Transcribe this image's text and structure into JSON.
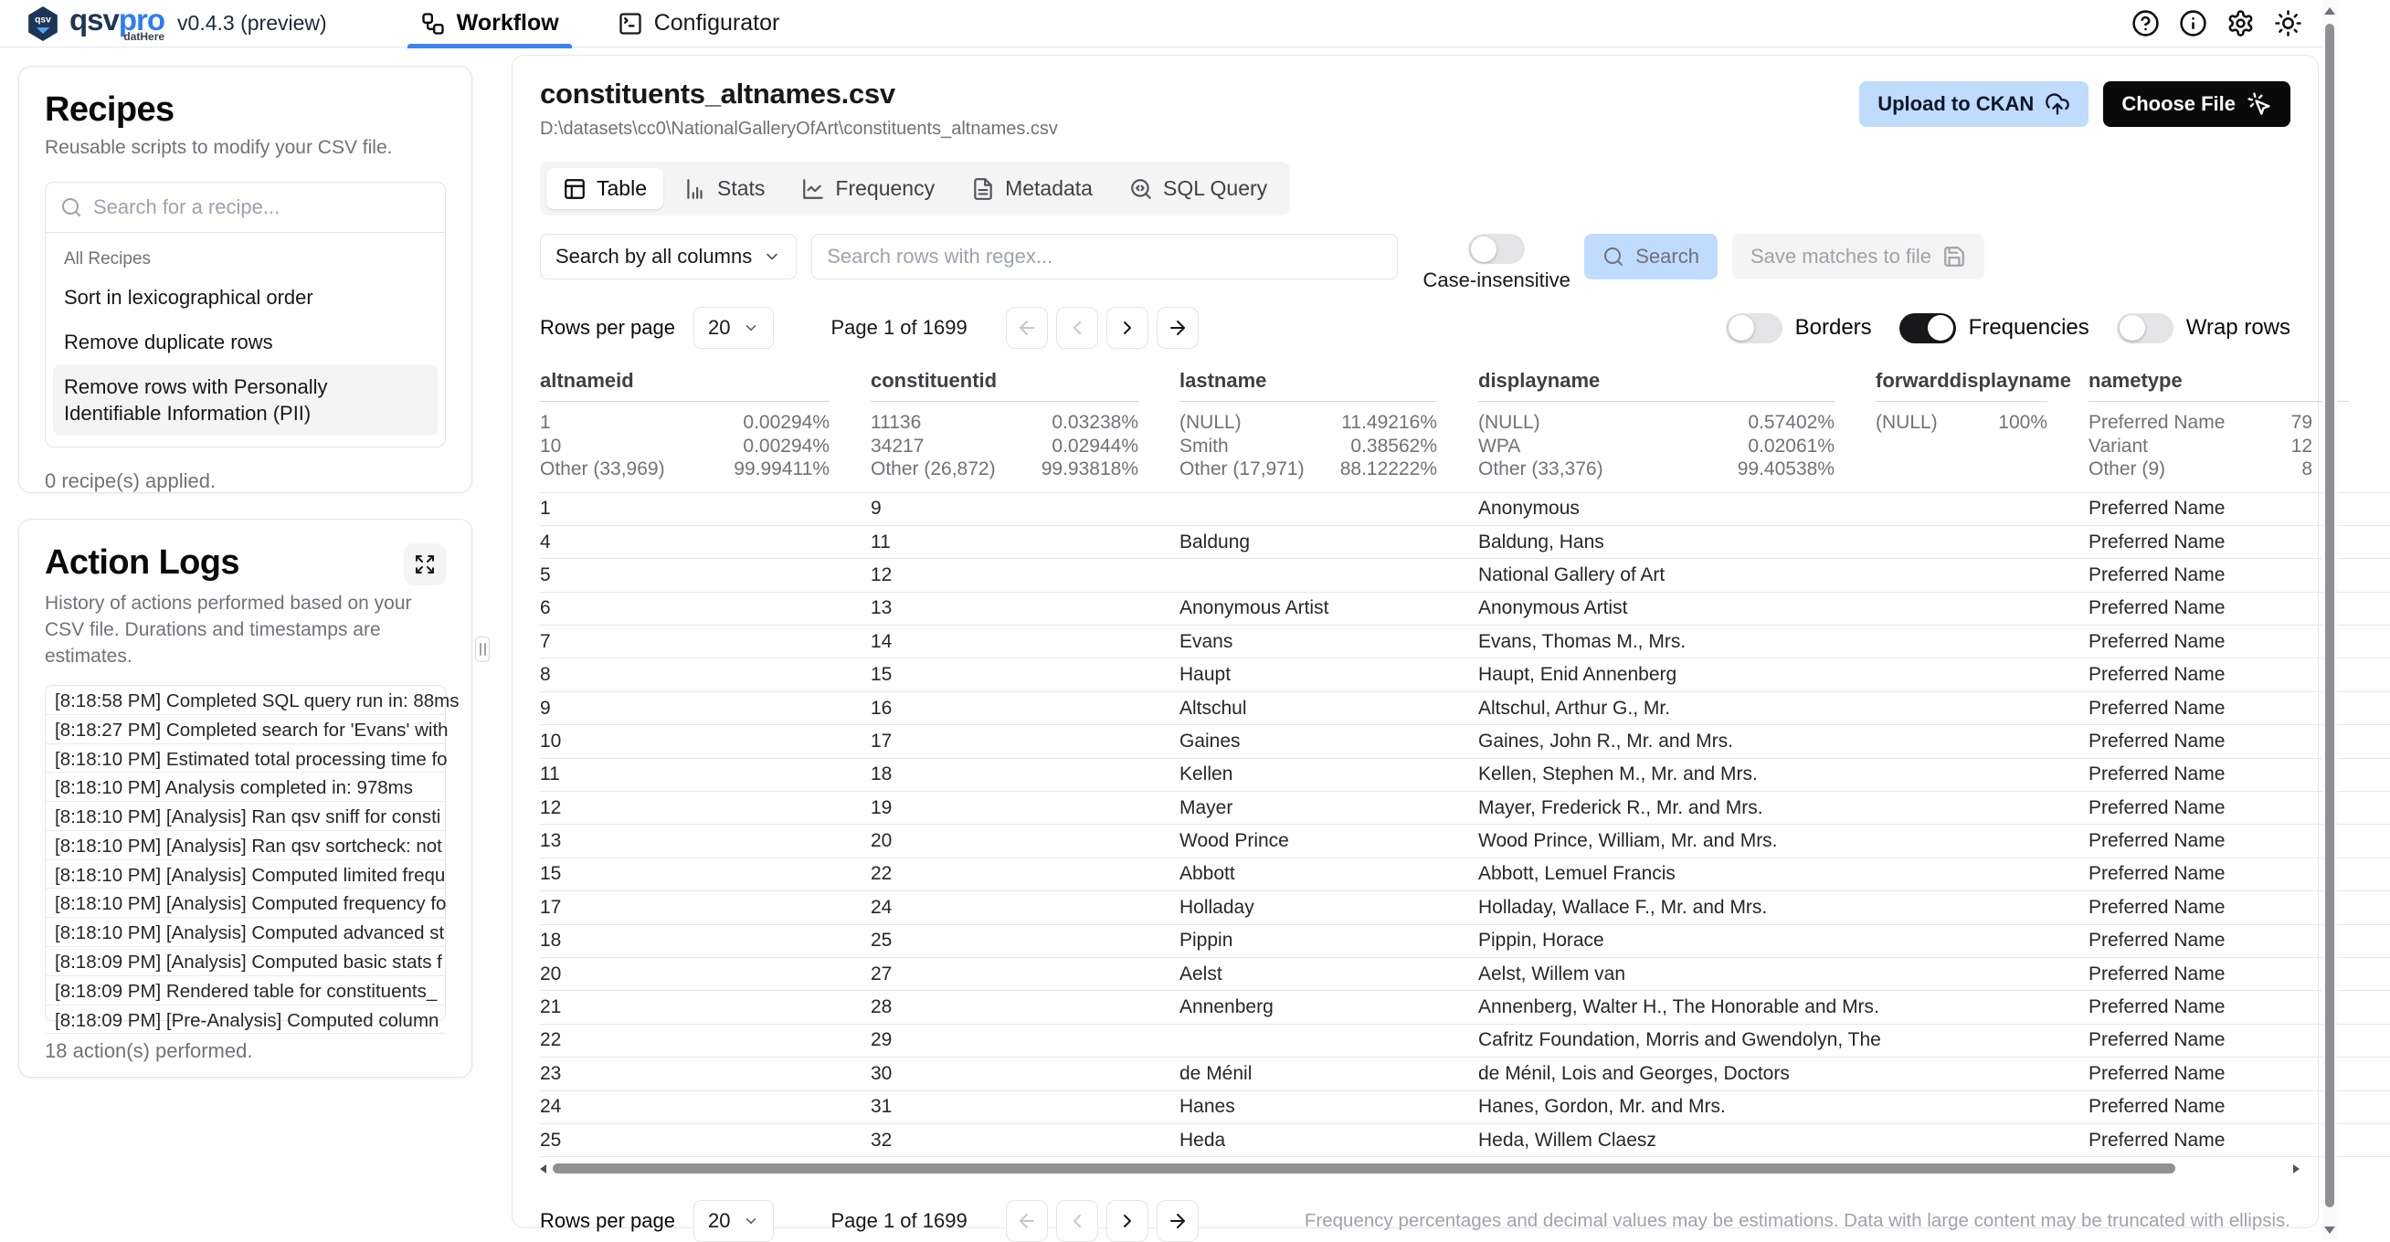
{
  "colors": {
    "accent": "#3b82f6",
    "upload_button_bg": "#bfdbfe",
    "choose_button_bg": "#0a0a0a",
    "toggle_on": "#18181b",
    "brand_navy": "#1d3557",
    "brand_blue": "#2f7bf5"
  },
  "topbar": {
    "brand": {
      "qsv": "qsv",
      "pro": "pro",
      "sub": "datHere"
    },
    "version": "v0.4.3 (preview)",
    "tabs": [
      {
        "label": "Workflow",
        "active": true
      },
      {
        "label": "Configurator",
        "active": false
      }
    ]
  },
  "recipes": {
    "title": "Recipes",
    "subtitle": "Reusable scripts to modify your CSV file.",
    "search_placeholder": "Search for a recipe...",
    "group_label": "All Recipes",
    "items": [
      {
        "label": "Sort in lexicographical order",
        "selected": false
      },
      {
        "label": "Remove duplicate rows",
        "selected": false
      },
      {
        "label": "Remove rows with Personally Identifiable Information (PII)",
        "selected": true
      }
    ],
    "applied_note": "0 recipe(s) applied."
  },
  "action_logs": {
    "title": "Action Logs",
    "subtitle": "History of actions performed based on your CSV file. Durations and timestamps are estimates.",
    "entries": [
      "[8:18:58 PM] Completed SQL query run in: 88ms",
      "[8:18:27 PM] Completed search for 'Evans' with",
      "[8:18:10 PM] Estimated total processing time fo",
      "[8:18:10 PM] Analysis completed in: 978ms",
      "[8:18:10 PM] [Analysis] Ran qsv sniff for consti",
      "[8:18:10 PM] [Analysis] Ran qsv sortcheck: not",
      "[8:18:10 PM] [Analysis] Computed limited frequ",
      "[8:18:10 PM] [Analysis] Computed frequency fo",
      "[8:18:10 PM] [Analysis] Computed advanced st",
      "[8:18:09 PM] [Analysis] Computed basic stats f",
      "[8:18:09 PM] Rendered table for constituents_",
      "[8:18:09 PM] [Pre-Analysis] Computed column"
    ],
    "footer": "18 action(s) performed."
  },
  "main": {
    "file": {
      "name": "constituents_altnames.csv",
      "path": "D:\\datasets\\cc0\\NationalGalleryOfArt\\constituents_altnames.csv"
    },
    "buttons": {
      "upload": "Upload to CKAN",
      "choose": "Choose File"
    },
    "tabs": [
      {
        "label": "Table",
        "active": true
      },
      {
        "label": "Stats",
        "active": false
      },
      {
        "label": "Frequency",
        "active": false
      },
      {
        "label": "Metadata",
        "active": false
      },
      {
        "label": "SQL Query",
        "active": false
      }
    ],
    "search": {
      "column_select": "Search by all columns",
      "input_placeholder": "Search rows with regex...",
      "case_label": "Case-insensitive",
      "case_on": false,
      "search_button": "Search",
      "save_button": "Save matches to file"
    },
    "pagination": {
      "rows_label": "Rows per page",
      "rows_value": "20",
      "page_status": "Page 1 of 1699"
    },
    "view_toggles": [
      {
        "label": "Borders",
        "on": false
      },
      {
        "label": "Frequencies",
        "on": true
      },
      {
        "label": "Wrap rows",
        "on": false
      }
    ],
    "footnote": "Frequency percentages and decimal values may be estimations. Data with large content may be truncated with ellipsis."
  },
  "table": {
    "columns": [
      "altnameid",
      "constituentid",
      "lastname",
      "displayname",
      "forwarddisplayname",
      "nametype"
    ],
    "frequencies": [
      [
        [
          "1",
          "0.00294%"
        ],
        [
          "10",
          "0.00294%"
        ],
        [
          "Other (33,969)",
          "99.99411%"
        ]
      ],
      [
        [
          "11136",
          "0.03238%"
        ],
        [
          "34217",
          "0.02944%"
        ],
        [
          "Other (26,872)",
          "99.93818%"
        ]
      ],
      [
        [
          "(NULL)",
          "11.49216%"
        ],
        [
          "Smith",
          "0.38562%"
        ],
        [
          "Other (17,971)",
          "88.12222%"
        ]
      ],
      [
        [
          "(NULL)",
          "0.57402%"
        ],
        [
          "WPA",
          "0.02061%"
        ],
        [
          "Other (33,376)",
          "99.40538%"
        ]
      ],
      [
        [
          "(NULL)",
          "100%"
        ]
      ],
      [
        [
          "Preferred Name",
          "79"
        ],
        [
          "Variant",
          "12"
        ],
        [
          "Other (9)",
          "8"
        ]
      ]
    ],
    "rows": [
      [
        "1",
        "9",
        "",
        "Anonymous",
        "",
        "Preferred Name"
      ],
      [
        "4",
        "11",
        "Baldung",
        "Baldung, Hans",
        "",
        "Preferred Name"
      ],
      [
        "5",
        "12",
        "",
        "National Gallery of Art",
        "",
        "Preferred Name"
      ],
      [
        "6",
        "13",
        "Anonymous Artist",
        "Anonymous Artist",
        "",
        "Preferred Name"
      ],
      [
        "7",
        "14",
        "Evans",
        "Evans, Thomas M., Mrs.",
        "",
        "Preferred Name"
      ],
      [
        "8",
        "15",
        "Haupt",
        "Haupt, Enid Annenberg",
        "",
        "Preferred Name"
      ],
      [
        "9",
        "16",
        "Altschul",
        "Altschul, Arthur G., Mr.",
        "",
        "Preferred Name"
      ],
      [
        "10",
        "17",
        "Gaines",
        "Gaines, John R., Mr. and Mrs.",
        "",
        "Preferred Name"
      ],
      [
        "11",
        "18",
        "Kellen",
        "Kellen, Stephen M., Mr. and Mrs.",
        "",
        "Preferred Name"
      ],
      [
        "12",
        "19",
        "Mayer",
        "Mayer, Frederick R., Mr. and Mrs.",
        "",
        "Preferred Name"
      ],
      [
        "13",
        "20",
        "Wood Prince",
        "Wood Prince, William, Mr. and Mrs.",
        "",
        "Preferred Name"
      ],
      [
        "15",
        "22",
        "Abbott",
        "Abbott, Lemuel Francis",
        "",
        "Preferred Name"
      ],
      [
        "17",
        "24",
        "Holladay",
        "Holladay, Wallace F., Mr. and Mrs.",
        "",
        "Preferred Name"
      ],
      [
        "18",
        "25",
        "Pippin",
        "Pippin, Horace",
        "",
        "Preferred Name"
      ],
      [
        "20",
        "27",
        "Aelst",
        "Aelst, Willem van",
        "",
        "Preferred Name"
      ],
      [
        "21",
        "28",
        "Annenberg",
        "Annenberg, Walter H., The Honorable and Mrs.",
        "",
        "Preferred Name"
      ],
      [
        "22",
        "29",
        "",
        "Cafritz Foundation, Morris and Gwendolyn, The",
        "",
        "Preferred Name"
      ],
      [
        "23",
        "30",
        "de Ménil",
        "de Ménil, Lois and Georges, Doctors",
        "",
        "Preferred Name"
      ],
      [
        "24",
        "31",
        "Hanes",
        "Hanes, Gordon, Mr. and Mrs.",
        "",
        "Preferred Name"
      ],
      [
        "25",
        "32",
        "Heda",
        "Heda, Willem Claesz",
        "",
        "Preferred Name"
      ]
    ]
  }
}
